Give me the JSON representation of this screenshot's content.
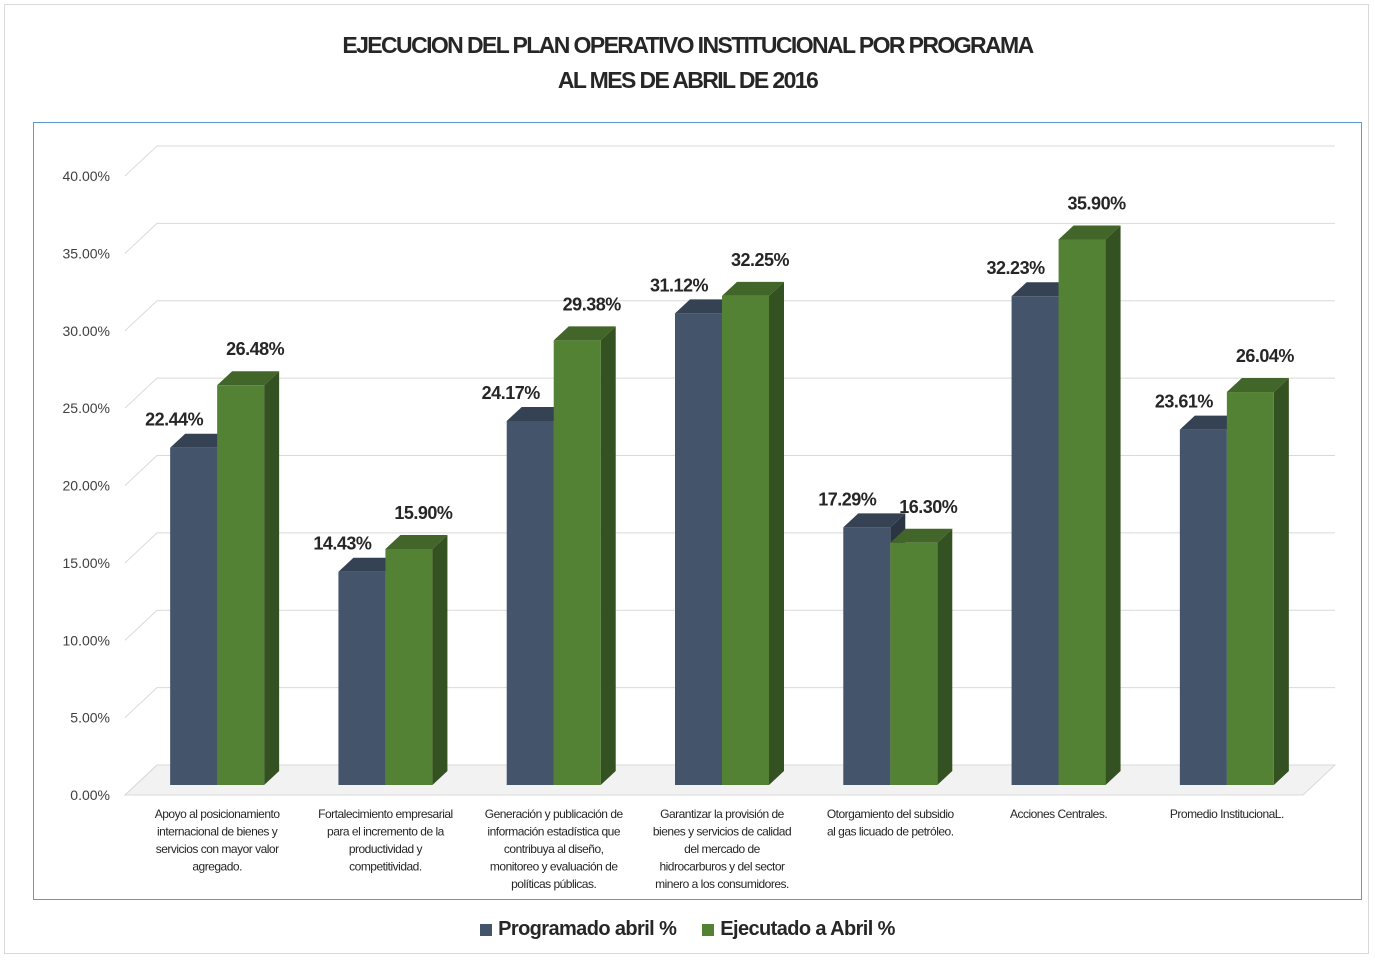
{
  "chart_data": {
    "type": "bar",
    "title_lines": [
      "EJECUCION DEL PLAN OPERATIVO INSTITUCIONAL POR PROGRAMA",
      "AL MES DE ABRIL DE 2016"
    ],
    "categories": [
      [
        "Apoyo al posicionamiento",
        "internacional de bienes y",
        "servicios con mayor valor",
        "agregado."
      ],
      [
        "Fortalecimiento empresarial",
        "para el incremento de la",
        "productividad y",
        "competitividad."
      ],
      [
        "Generación y publicación de",
        "información estadística que",
        "contribuya al diseño,",
        "monitoreo y evaluación de",
        "políticas públicas."
      ],
      [
        "Garantizar la provisión de",
        "bienes y servicios de calidad",
        "del mercado de",
        "hidrocarburos y del sector",
        "minero a los consumidores."
      ],
      [
        "Otorgamiento del subsidio",
        "al gas licuado de petróleo."
      ],
      [
        "Acciones Centrales."
      ],
      [
        "Promedio InstitucionaL."
      ]
    ],
    "series": [
      {
        "name": "Programado abril %",
        "color": "#44546a",
        "values": [
          22.44,
          14.43,
          24.17,
          31.12,
          17.29,
          32.23,
          23.61
        ],
        "labels": [
          "22.44%",
          "14.43%",
          "24.17%",
          "31.12%",
          "17.29%",
          "32.23%",
          "23.61%"
        ]
      },
      {
        "name": "Ejecutado a Abril %",
        "color": "#548235",
        "values": [
          26.48,
          15.9,
          29.38,
          32.25,
          16.3,
          35.9,
          26.04
        ],
        "labels": [
          "26.48%",
          "15.90%",
          "29.38%",
          "32.25%",
          "16.30%",
          "35.90%",
          "26.04%"
        ]
      }
    ],
    "yticks": [
      "0.00%",
      "5.00%",
      "10.00%",
      "15.00%",
      "20.00%",
      "25.00%",
      "30.00%",
      "35.00%",
      "40.00%"
    ],
    "ylim": [
      0,
      40
    ],
    "grid": true,
    "legend_position": "bottom",
    "style": "3d-column"
  }
}
